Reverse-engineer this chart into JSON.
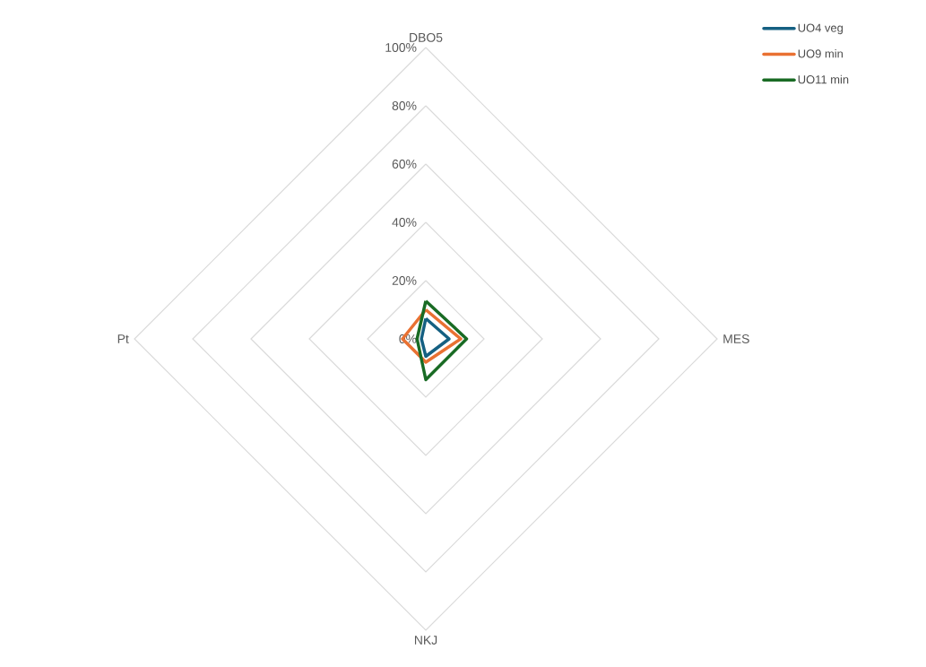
{
  "chart_data": {
    "type": "radar",
    "categories": [
      "DBO5",
      "MES",
      "NKJ",
      "Pt"
    ],
    "series": [
      {
        "name": "UO4 veg",
        "color": "#156082",
        "values": [
          7,
          8,
          6,
          1.5
        ]
      },
      {
        "name": "UO9 min",
        "color": "#e97132",
        "values": [
          10,
          12,
          8,
          8
        ]
      },
      {
        "name": "UO11 min",
        "color": "#196b24",
        "values": [
          13,
          14,
          14,
          3
        ]
      }
    ],
    "ylim": [
      0,
      100
    ],
    "yticks": [
      {
        "value": 0,
        "label": "0%"
      },
      {
        "value": 20,
        "label": "20%"
      },
      {
        "value": 40,
        "label": "40%"
      },
      {
        "value": 60,
        "label": "60%"
      },
      {
        "value": 80,
        "label": "80%"
      },
      {
        "value": 100,
        "label": "100%"
      }
    ],
    "grid": true,
    "legend": "top right",
    "marker": "none",
    "line_style": "solid"
  }
}
